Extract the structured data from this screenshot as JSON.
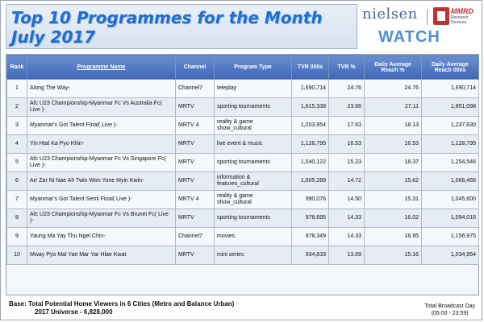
{
  "title": {
    "line1": "Top 10 Programmes  for the Month",
    "line2": "July 2017"
  },
  "logos": {
    "nielsen": "nielsen",
    "mmrd_name": "MMRD",
    "mmrd_sub1": "Research",
    "mmrd_sub2": "Services",
    "watch": "WATCH"
  },
  "table": {
    "headers": {
      "rank": "Rank",
      "programme": "Programme  Name",
      "channel": "Channel",
      "type": "Program Type",
      "tvr000": "TVR 000s",
      "tvr_pct": "TVR %",
      "reach_pct": "Daily Average Reach %",
      "reach000": "Daily Average Reach 000s"
    },
    "rows": [
      {
        "rank": "1",
        "programme": "Along The Way-",
        "channel": "Channel7",
        "type": "teleplay",
        "tvr000": "1,690,714",
        "tvr_pct": "24.76",
        "reach_pct": "24.76",
        "reach000": "1,690,714"
      },
      {
        "rank": "2",
        "programme": "Afc U23 Championship-Myanmar Fc Vs Australia Fc( Live )-",
        "channel": "MRTV",
        "type": "sporting tournaments",
        "tvr000": "1,615,338",
        "tvr_pct": "23.66",
        "reach_pct": "27.11",
        "reach000": "1,851,098"
      },
      {
        "rank": "3",
        "programme": "Myanmar's Got Talent Final( Live )-",
        "channel": "MRTV 4",
        "type": "reality & game show_cultural",
        "tvr000": "1,203,954",
        "tvr_pct": "17.63",
        "reach_pct": "18.13",
        "reach000": "1,237,630"
      },
      {
        "rank": "4",
        "programme": "Yin Htal Ka Pyo Khin-",
        "channel": "MRTV",
        "type": "live event & music",
        "tvr000": "1,128,795",
        "tvr_pct": "16.53",
        "reach_pct": "16.53",
        "reach000": "1,128,795"
      },
      {
        "rank": "5",
        "programme": "Afc U23 Championship-Myanmar Fc Vs Singapore Fc( Live )-",
        "channel": "MRTV",
        "type": "sporting tournaments",
        "tvr000": "1,040,122",
        "tvr_pct": "15.23",
        "reach_pct": "18.37",
        "reach000": "1,254,546"
      },
      {
        "rank": "6",
        "programme": "Arr Zar Ni Nae Ah Twin Won Yone Myin Kwin-",
        "channel": "MRTV",
        "type": "information & features_cultural",
        "tvr000": "1,005,289",
        "tvr_pct": "14.72",
        "reach_pct": "15.62",
        "reach000": "1,066,466"
      },
      {
        "rank": "7",
        "programme": "Myanmar's Got Talent Semi Final( Live )-",
        "channel": "MRTV 4",
        "type": "reality & game show_cultural",
        "tvr000": "990,076",
        "tvr_pct": "14.50",
        "reach_pct": "15.31",
        "reach000": "1,045,600"
      },
      {
        "rank": "8",
        "programme": "Afc U23 Championship-Myanmar Fc Vs Brunei Fc( Live )-",
        "channel": "MRTV",
        "type": "sporting tournaments",
        "tvr000": "978,695",
        "tvr_pct": "14.33",
        "reach_pct": "16.02",
        "reach000": "1,094,016"
      },
      {
        "rank": "9",
        "programme": "Yaung Ma Yay Thu Ngel Chin-",
        "channel": "Channel7",
        "type": "movies",
        "tvr000": "978,349",
        "tvr_pct": "14.33",
        "reach_pct": "16.95",
        "reach000": "1,156,975"
      },
      {
        "rank": "10",
        "programme": "Mway Pyo Mal Yae Mar Yar Hlae Kwat",
        "channel": "MRTV",
        "type": "mini series",
        "tvr000": "934,833",
        "tvr_pct": "13.69",
        "reach_pct": "15.16",
        "reach000": "1,034,954"
      }
    ]
  },
  "footer": {
    "base_line1": "Base:  Total Potential Home Viewers in 6 Cities (Metro and Balance Urban)",
    "base_line2": "2017 Universe - 6,828,000",
    "broadcast_line1": "Total Broadcast Day",
    "broadcast_line2": "(05:00 - 23:59)"
  }
}
